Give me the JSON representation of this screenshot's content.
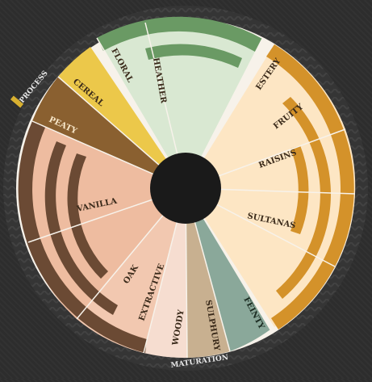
{
  "outer_labels": {
    "process": "PROCESS",
    "maturation": "MATURATION"
  },
  "segments": [
    {
      "id": "floral",
      "label": "FLORAL",
      "color": "#5f8f5a",
      "fill": "#d9e8d2"
    },
    {
      "id": "heather",
      "label": "HEATHER",
      "color": "#5f8f5a",
      "fill": "#d9e8d2"
    },
    {
      "id": "estery",
      "label": "ESTERY",
      "color": "#d4922a",
      "fill": "#fde6c4"
    },
    {
      "id": "fruity",
      "label": "FRUITY",
      "color": "#d4922a",
      "fill": "#fde6c4"
    },
    {
      "id": "raisins",
      "label": "RAISINS",
      "color": "#d4922a",
      "fill": "#fde6c4"
    },
    {
      "id": "sultanas",
      "label": "SULTANAS",
      "color": "#d4922a",
      "fill": "#fde6c4"
    },
    {
      "id": "feinty",
      "label": "FEINTY",
      "color": "#6a8a7c",
      "fill": "#8aa89a"
    },
    {
      "id": "sulphury",
      "label": "SULPHURY",
      "color": "#9a8266",
      "fill": "#c8b090"
    },
    {
      "id": "woody",
      "label": "WOODY",
      "color": "#6b4a34",
      "fill": "#f6ddd0"
    },
    {
      "id": "extractive",
      "label": "EXTRACTIVE",
      "color": "#6b4a34",
      "fill": "#f2c8b0"
    },
    {
      "id": "oak",
      "label": "OAK",
      "color": "#6b4a34",
      "fill": "#eebca0"
    },
    {
      "id": "vanilla",
      "label": "VANILLA",
      "color": "#6b4a34",
      "fill": "#eebca0"
    },
    {
      "id": "peaty",
      "label": "PEATY",
      "color": "#7d5a2a",
      "fill": "#9a6e32"
    },
    {
      "id": "cereal",
      "label": "CEREAL",
      "color": "#d8b030",
      "fill": "#ecc84a"
    }
  ],
  "colors": {
    "background": "#2d2d2d",
    "ring": "#3a3a3a",
    "hub": "#1a1a1a",
    "label_ink": "#3a2a1a"
  }
}
